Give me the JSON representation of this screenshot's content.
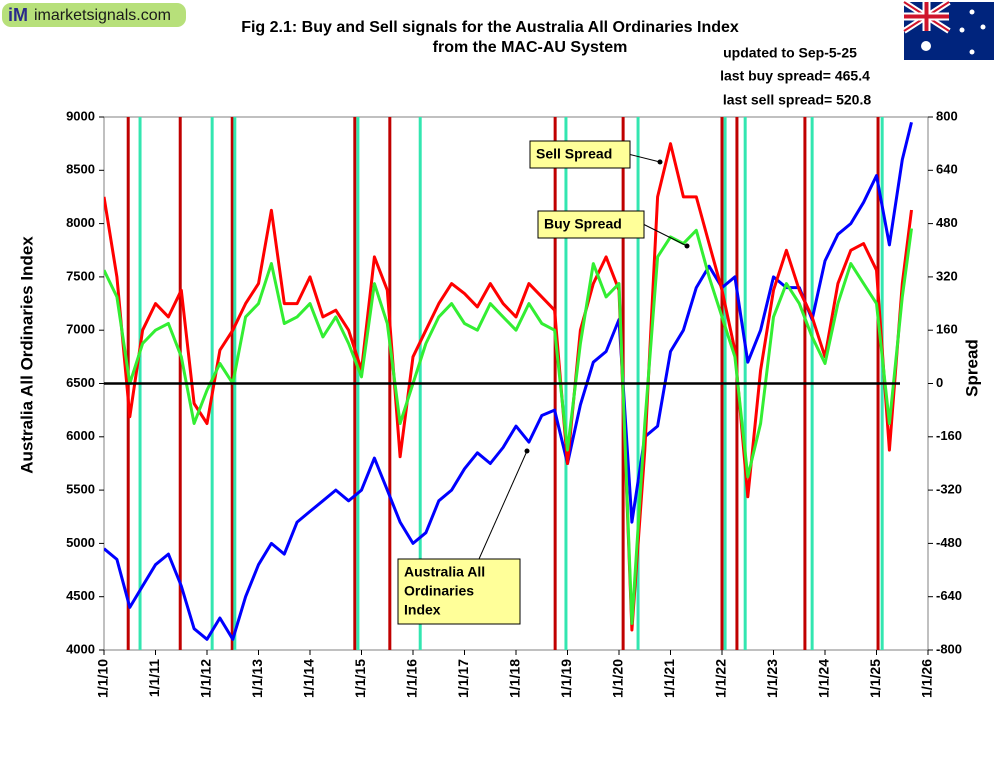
{
  "logo": {
    "mark": "iM",
    "text": "imarketsignals.com"
  },
  "chart_data": {
    "type": "line",
    "title": [
      "Fig 2.1:  Buy and Sell signals for the Australia All Ordinaries Index",
      "from the MAC-AU System"
    ],
    "notes": [
      "updated to Sep-5-25",
      "last buy spread= 465.4",
      "last sell spread= 520.8"
    ],
    "y_label": "Australia All Ordinaries Index",
    "y2_label": "Spread",
    "xlim": [
      2010,
      2026
    ],
    "xticks": [
      {
        "value": 2010,
        "label": "1/1/10"
      },
      {
        "value": 2011,
        "label": "1/1/11"
      },
      {
        "value": 2012,
        "label": "1/1/12"
      },
      {
        "value": 2013,
        "label": "1/1/13"
      },
      {
        "value": 2014,
        "label": "1/1/14"
      },
      {
        "value": 2015,
        "label": "1/1/15"
      },
      {
        "value": 2016,
        "label": "1/1/16"
      },
      {
        "value": 2017,
        "label": "1/1/17"
      },
      {
        "value": 2018,
        "label": "1/1/18"
      },
      {
        "value": 2019,
        "label": "1/1/19"
      },
      {
        "value": 2020,
        "label": "1/1/20"
      },
      {
        "value": 2021,
        "label": "1/1/21"
      },
      {
        "value": 2022,
        "label": "1/1/22"
      },
      {
        "value": 2023,
        "label": "1/1/23"
      },
      {
        "value": 2024,
        "label": "1/1/24"
      },
      {
        "value": 2025,
        "label": "1/1/25"
      },
      {
        "value": 2026,
        "label": "1/1/26"
      }
    ],
    "ylim": [
      4000,
      9000
    ],
    "yticks": [
      4000,
      4500,
      5000,
      5500,
      6000,
      6500,
      7000,
      7500,
      8000,
      8500,
      9000
    ],
    "y2lim": [
      -800,
      800
    ],
    "y2ticks": [
      -800,
      -640,
      -480,
      -320,
      -160,
      0,
      160,
      320,
      480,
      640,
      800
    ],
    "zero_line": {
      "value": 0,
      "axis": "y2",
      "color": "#000000"
    },
    "x": [
      2010.0,
      2010.25,
      2010.5,
      2010.75,
      2011.0,
      2011.25,
      2011.5,
      2011.75,
      2012.0,
      2012.25,
      2012.5,
      2012.75,
      2013.0,
      2013.25,
      2013.5,
      2013.75,
      2014.0,
      2014.25,
      2014.5,
      2014.75,
      2015.0,
      2015.25,
      2015.5,
      2015.75,
      2016.0,
      2016.25,
      2016.5,
      2016.75,
      2017.0,
      2017.25,
      2017.5,
      2017.75,
      2018.0,
      2018.25,
      2018.5,
      2018.75,
      2019.0,
      2019.25,
      2019.5,
      2019.75,
      2020.0,
      2020.25,
      2020.5,
      2020.75,
      2021.0,
      2021.25,
      2021.5,
      2021.75,
      2022.0,
      2022.25,
      2022.5,
      2022.75,
      2023.0,
      2023.25,
      2023.5,
      2023.75,
      2024.0,
      2024.25,
      2024.5,
      2024.75,
      2025.0,
      2025.25,
      2025.5,
      2025.68
    ],
    "series": [
      {
        "name": "Australia All Ordinaries Index",
        "color": "#0000ff",
        "axis": "y",
        "values": [
          4950,
          4850,
          4400,
          4600,
          4800,
          4900,
          4600,
          4200,
          4100,
          4300,
          4100,
          4500,
          4800,
          5000,
          4900,
          5200,
          5300,
          5400,
          5500,
          5400,
          5500,
          5800,
          5500,
          5200,
          5000,
          5100,
          5400,
          5500,
          5700,
          5850,
          5750,
          5900,
          6100,
          5950,
          6200,
          6250,
          5750,
          6300,
          6700,
          6800,
          7100,
          5200,
          6000,
          6100,
          6800,
          7000,
          7400,
          7600,
          7400,
          7500,
          6700,
          7000,
          7500,
          7400,
          7400,
          7100,
          7650,
          7900,
          8000,
          8200,
          8450,
          7800,
          8600,
          8950
        ]
      },
      {
        "name": "Sell Spread",
        "color": "#ff0000",
        "axis": "y2",
        "values": [
          560,
          320,
          -100,
          160,
          240,
          200,
          280,
          -60,
          -120,
          100,
          160,
          240,
          300,
          520,
          240,
          240,
          320,
          200,
          220,
          160,
          40,
          380,
          280,
          -220,
          80,
          160,
          240,
          300,
          270,
          230,
          300,
          240,
          200,
          300,
          260,
          220,
          -240,
          160,
          300,
          380,
          280,
          -740,
          -200,
          560,
          720,
          560,
          560,
          420,
          280,
          100,
          -340,
          40,
          280,
          400,
          280,
          200,
          80,
          300,
          400,
          420,
          340,
          -200,
          300,
          520.8
        ]
      },
      {
        "name": "Buy Spread",
        "color": "#33ee33",
        "axis": "y2",
        "values": [
          340,
          260,
          0,
          120,
          160,
          180,
          80,
          -120,
          -20,
          60,
          0,
          200,
          240,
          360,
          180,
          200,
          240,
          140,
          200,
          120,
          20,
          300,
          180,
          -120,
          0,
          120,
          200,
          240,
          180,
          160,
          240,
          200,
          160,
          240,
          180,
          160,
          -200,
          120,
          360,
          260,
          300,
          -720,
          -120,
          380,
          440,
          420,
          460,
          320,
          200,
          80,
          -280,
          -120,
          200,
          300,
          240,
          140,
          60,
          240,
          360,
          300,
          240,
          -120,
          260,
          465.4
        ]
      }
    ],
    "signals": [
      {
        "kind": "sell",
        "color": "#c00000",
        "x": [
          2010.47,
          2011.48,
          2012.49,
          2014.87,
          2015.55,
          2018.76,
          2020.08,
          2022.0,
          2022.29,
          2023.61,
          2025.03
        ]
      },
      {
        "kind": "buy",
        "color": "#33e6b0",
        "x": [
          2010.7,
          2012.1,
          2012.54,
          2014.93,
          2016.14,
          2018.97,
          2020.37,
          2022.06,
          2022.45,
          2023.75,
          2025.11
        ]
      }
    ],
    "annotations": [
      {
        "lines": [
          "Sell Spread"
        ]
      },
      {
        "lines": [
          "Buy Spread"
        ]
      },
      {
        "lines": [
          "Australia All",
          "Ordinaries",
          "Index"
        ]
      }
    ]
  }
}
